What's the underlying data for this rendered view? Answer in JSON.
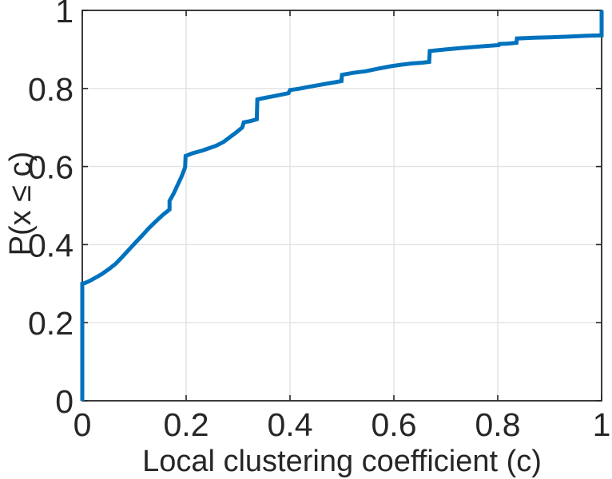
{
  "figure": {
    "background": "#ffffff"
  },
  "chart_data": {
    "type": "line",
    "subtype": "empirical_cdf_staircase",
    "xlabel": "Local clustering coefficient (c)",
    "ylabel": "P(x ≤ c)",
    "xlim": [
      0,
      1
    ],
    "ylim": [
      0,
      1
    ],
    "grid": true,
    "legend_position": "none",
    "xticks": [
      0,
      0.2,
      0.4,
      0.6,
      0.8,
      1
    ],
    "xticklabels": [
      "0",
      "0.2",
      "0.4",
      "0.6",
      "0.8",
      "1"
    ],
    "yticks": [
      0,
      0.2,
      0.4,
      0.6,
      0.8,
      1
    ],
    "yticklabels": [
      "0",
      "0.2",
      "0.4",
      "0.6",
      "0.8",
      "1"
    ],
    "line_color": "#0072BD",
    "axis_color": "#262626",
    "grid_color": "#e2e2e2",
    "line_width": 5,
    "points": [
      [
        0,
        0
      ],
      [
        0,
        0.3
      ],
      [
        0.006,
        0.302
      ],
      [
        0.014,
        0.307
      ],
      [
        0.025,
        0.315
      ],
      [
        0.038,
        0.325
      ],
      [
        0.052,
        0.338
      ],
      [
        0.065,
        0.352
      ],
      [
        0.078,
        0.37
      ],
      [
        0.091,
        0.389
      ],
      [
        0.103,
        0.406
      ],
      [
        0.115,
        0.423
      ],
      [
        0.128,
        0.442
      ],
      [
        0.142,
        0.46
      ],
      [
        0.155,
        0.476
      ],
      [
        0.168,
        0.49
      ],
      [
        0.168,
        0.512
      ],
      [
        0.176,
        0.531
      ],
      [
        0.183,
        0.551
      ],
      [
        0.191,
        0.574
      ],
      [
        0.198,
        0.598
      ],
      [
        0.199,
        0.627
      ],
      [
        0.212,
        0.634
      ],
      [
        0.231,
        0.641
      ],
      [
        0.257,
        0.653
      ],
      [
        0.272,
        0.663
      ],
      [
        0.285,
        0.676
      ],
      [
        0.297,
        0.688
      ],
      [
        0.308,
        0.7
      ],
      [
        0.311,
        0.713
      ],
      [
        0.325,
        0.717
      ],
      [
        0.336,
        0.721
      ],
      [
        0.337,
        0.772
      ],
      [
        0.352,
        0.776
      ],
      [
        0.368,
        0.78
      ],
      [
        0.383,
        0.784
      ],
      [
        0.397,
        0.788
      ],
      [
        0.4,
        0.796
      ],
      [
        0.416,
        0.799
      ],
      [
        0.432,
        0.803
      ],
      [
        0.452,
        0.808
      ],
      [
        0.47,
        0.812
      ],
      [
        0.487,
        0.816
      ],
      [
        0.499,
        0.819
      ],
      [
        0.5,
        0.835
      ],
      [
        0.522,
        0.84
      ],
      [
        0.545,
        0.844
      ],
      [
        0.57,
        0.851
      ],
      [
        0.595,
        0.857
      ],
      [
        0.615,
        0.861
      ],
      [
        0.634,
        0.864
      ],
      [
        0.655,
        0.866
      ],
      [
        0.668,
        0.868
      ],
      [
        0.669,
        0.896
      ],
      [
        0.7,
        0.9
      ],
      [
        0.734,
        0.904
      ],
      [
        0.77,
        0.908
      ],
      [
        0.802,
        0.911
      ],
      [
        0.803,
        0.914
      ],
      [
        0.82,
        0.915
      ],
      [
        0.836,
        0.917
      ],
      [
        0.837,
        0.928
      ],
      [
        0.87,
        0.93
      ],
      [
        0.9,
        0.931
      ],
      [
        0.94,
        0.933
      ],
      [
        0.972,
        0.935
      ],
      [
        1.0,
        0.936
      ],
      [
        1.0,
        1.0
      ]
    ]
  }
}
